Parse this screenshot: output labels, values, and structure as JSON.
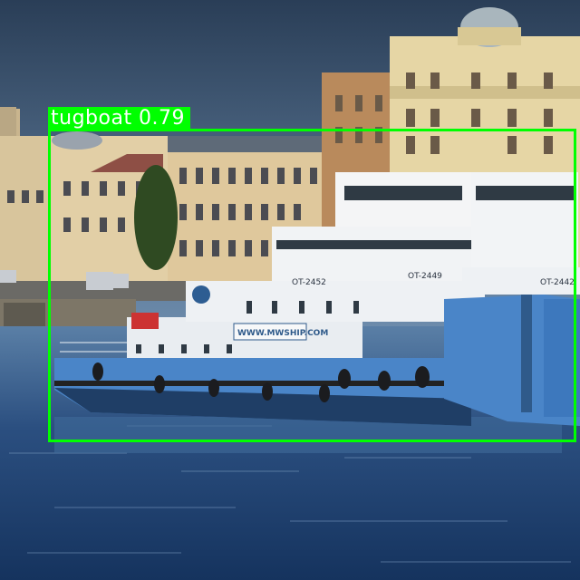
{
  "detections": [
    {
      "class": "tugboat",
      "score": "0.79",
      "label": "tugboat 0.79",
      "color": "#00ff00"
    }
  ],
  "hull_signage": [
    "OT-2452",
    "OT-2449",
    "OT-2442",
    "WWW.MWSHIP.COM"
  ]
}
